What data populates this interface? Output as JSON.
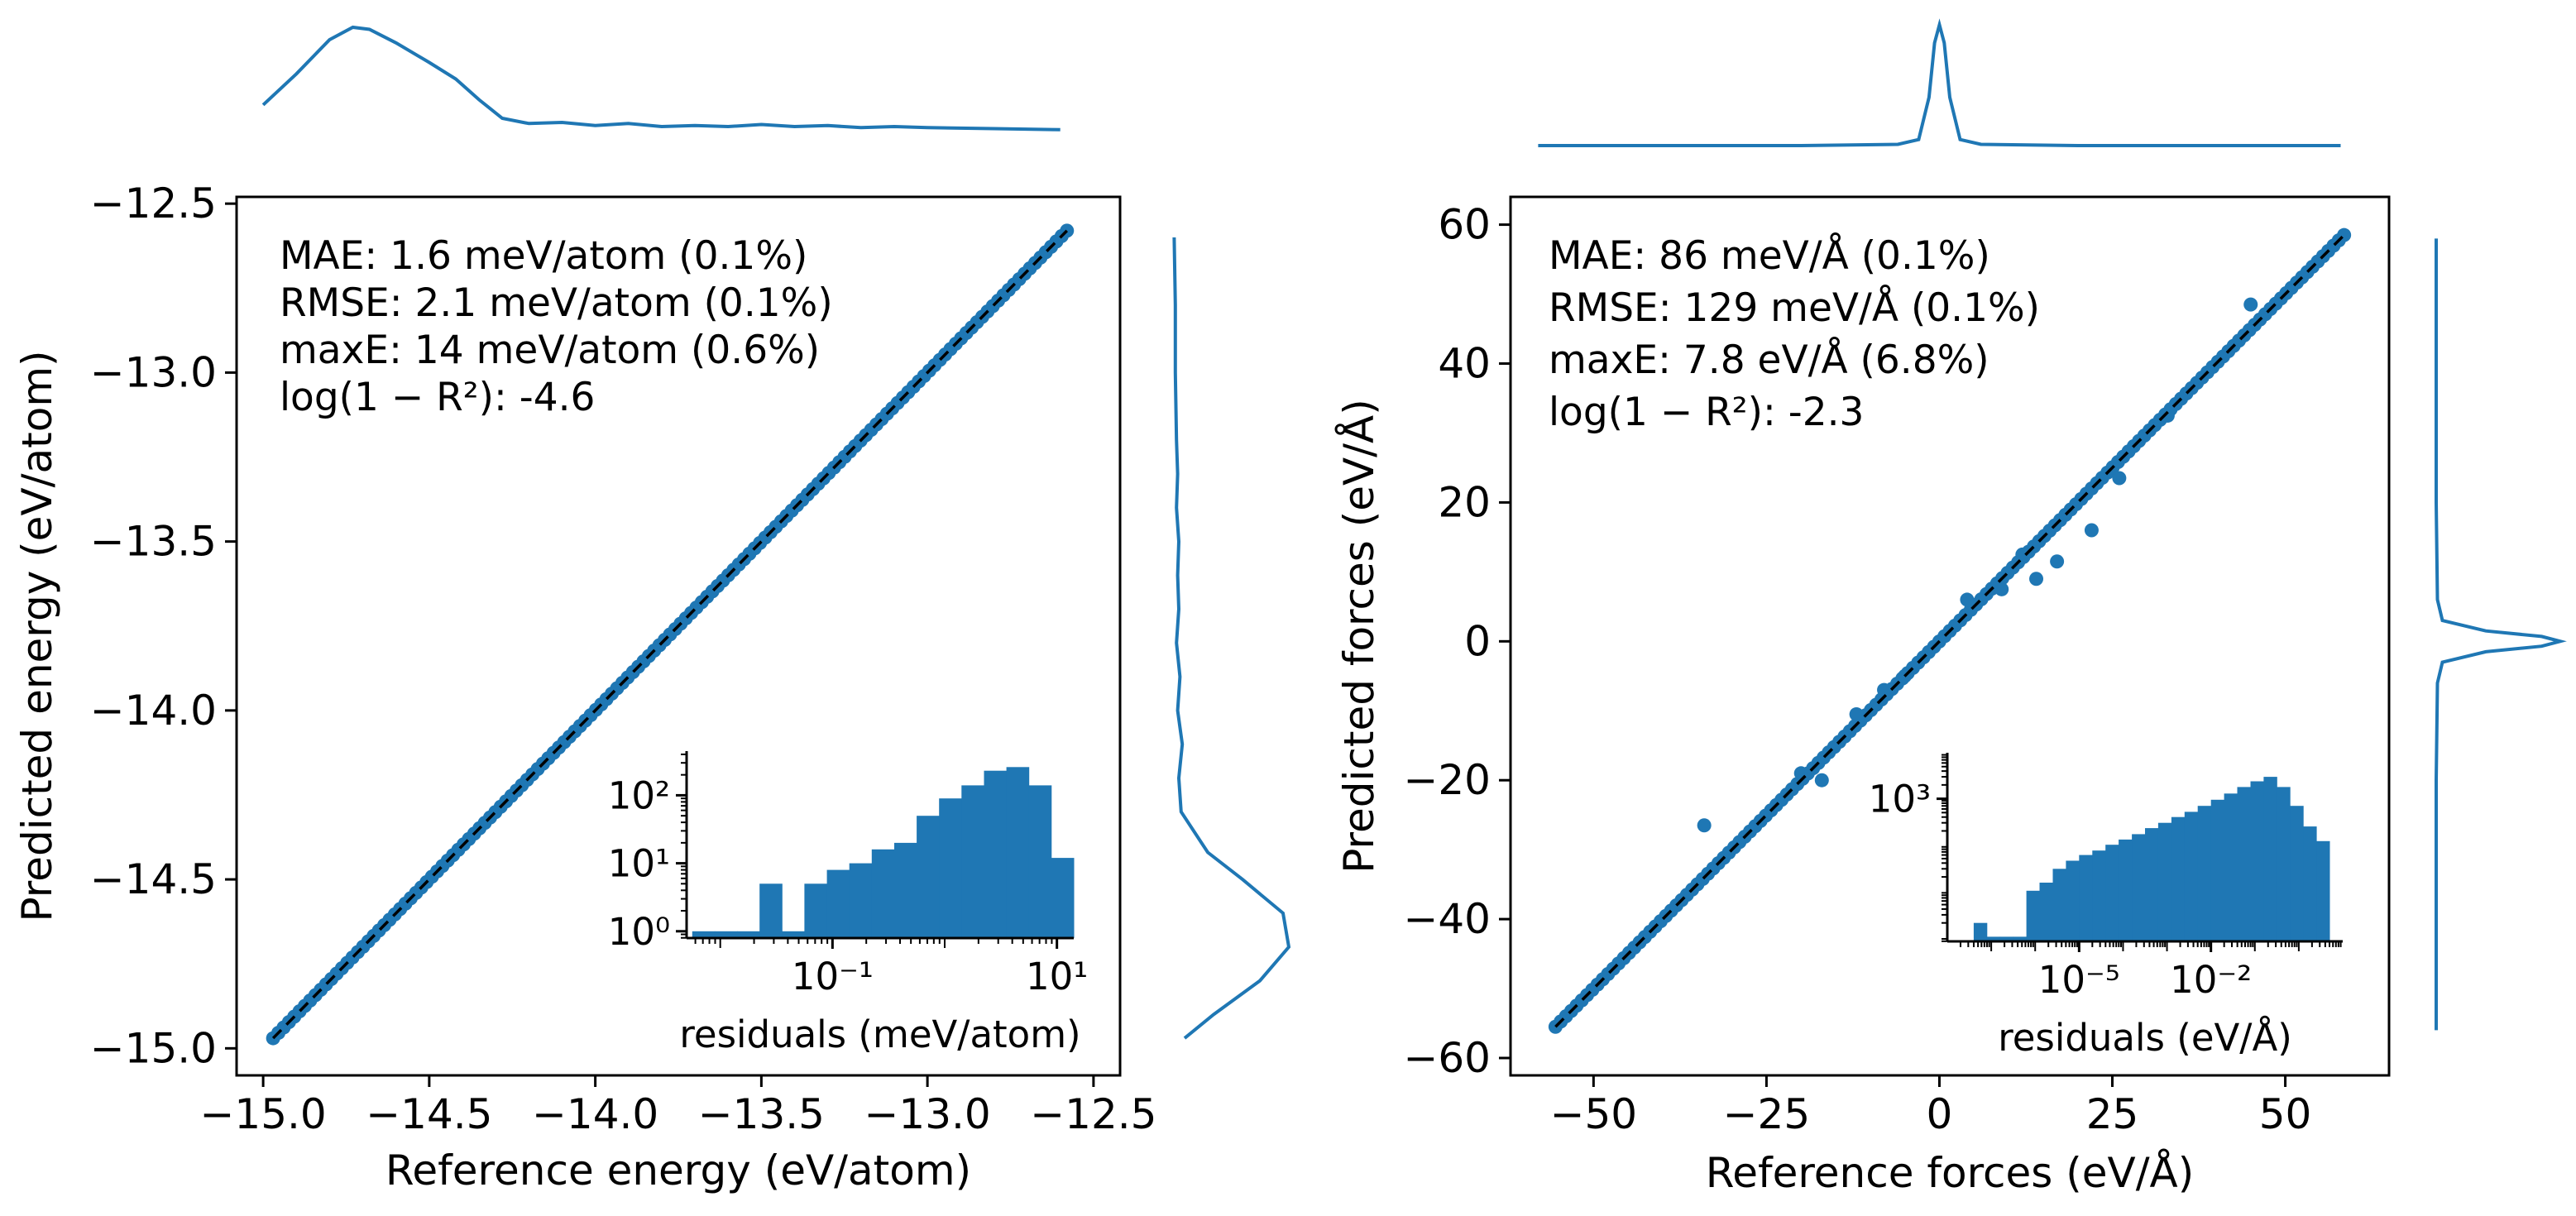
{
  "colors": {
    "accent": "#1f77b4",
    "ref_line": "#000000",
    "frame": "#000000"
  },
  "chart_data": [
    {
      "id": "energy",
      "type": "scatter",
      "xlabel": "Reference energy (eV/atom)",
      "ylabel": "Predicted energy (eV/atom)",
      "xlim": [
        -15.08,
        -12.42
      ],
      "ylim": [
        -15.08,
        -12.48
      ],
      "xticks": [
        -15.0,
        -14.5,
        -14.0,
        -13.5,
        -13.0,
        -12.5
      ],
      "xtick_labels": [
        "−15.0",
        "−14.5",
        "−14.0",
        "−13.5",
        "−13.0",
        "−12.5"
      ],
      "yticks": [
        -15.0,
        -14.5,
        -14.0,
        -13.5,
        -13.0,
        -12.5
      ],
      "ytick_labels": [
        "−15.0",
        "−14.5",
        "−14.0",
        "−13.5",
        "−13.0",
        "−12.5"
      ],
      "data_range": [
        -14.97,
        -12.58
      ],
      "reference_line": "y = x (dashed)",
      "stats": [
        "MAE: 1.6 meV/atom (0.1%)",
        "RMSE: 2.1 meV/atom (0.1%)",
        "maxE: 14 meV/atom (0.6%)",
        "log(1 − R²): -4.6"
      ],
      "top_kde": [
        [
          -15.0,
          0.25
        ],
        [
          -14.9,
          0.55
        ],
        [
          -14.8,
          0.88
        ],
        [
          -14.73,
          1.0
        ],
        [
          -14.68,
          0.98
        ],
        [
          -14.6,
          0.85
        ],
        [
          -14.5,
          0.66
        ],
        [
          -14.42,
          0.5
        ],
        [
          -14.35,
          0.3
        ],
        [
          -14.28,
          0.12
        ],
        [
          -14.2,
          0.07
        ],
        [
          -14.1,
          0.08
        ],
        [
          -14.0,
          0.05
        ],
        [
          -13.9,
          0.07
        ],
        [
          -13.8,
          0.04
        ],
        [
          -13.7,
          0.05
        ],
        [
          -13.6,
          0.04
        ],
        [
          -13.5,
          0.06
        ],
        [
          -13.4,
          0.04
        ],
        [
          -13.3,
          0.05
        ],
        [
          -13.2,
          0.03
        ],
        [
          -13.1,
          0.04
        ],
        [
          -13.0,
          0.03
        ],
        [
          -12.8,
          0.02
        ],
        [
          -12.6,
          0.01
        ]
      ],
      "right_kde": [
        [
          -14.97,
          0.1
        ],
        [
          -14.9,
          0.35
        ],
        [
          -14.8,
          0.75
        ],
        [
          -14.7,
          1.0
        ],
        [
          -14.6,
          0.95
        ],
        [
          -14.5,
          0.6
        ],
        [
          -14.42,
          0.3
        ],
        [
          -14.3,
          0.07
        ],
        [
          -14.2,
          0.05
        ],
        [
          -14.1,
          0.08
        ],
        [
          -14.0,
          0.04
        ],
        [
          -13.9,
          0.06
        ],
        [
          -13.8,
          0.03
        ],
        [
          -13.7,
          0.05
        ],
        [
          -13.6,
          0.04
        ],
        [
          -13.5,
          0.05
        ],
        [
          -13.4,
          0.03
        ],
        [
          -13.3,
          0.04
        ],
        [
          -13.2,
          0.03
        ],
        [
          -13.0,
          0.02
        ],
        [
          -12.8,
          0.02
        ],
        [
          -12.6,
          0.01
        ]
      ],
      "inset": {
        "type": "histogram",
        "xlabel": "residuals (meV/atom)",
        "xscale": "log",
        "yscale": "log",
        "xlim_log10": [
          -2.3,
          1.15
        ],
        "ylim_log10": [
          -0.1,
          2.65
        ],
        "xtick_log10": [
          -1,
          1
        ],
        "xtick_labels": [
          "10⁻¹",
          "10¹"
        ],
        "ytick_log10": [
          0,
          1,
          2
        ],
        "ytick_labels": [
          "10⁰",
          "10¹",
          "10²"
        ],
        "bins_log10": [
          -2.25,
          -2.05,
          -1.85,
          -1.65,
          -1.45,
          -1.25,
          -1.05,
          -0.85,
          -0.65,
          -0.45,
          -0.25,
          -0.05,
          0.15,
          0.35,
          0.55,
          0.75,
          0.95,
          1.15
        ],
        "counts": [
          1,
          1,
          1,
          5,
          1,
          5,
          8,
          10,
          16,
          20,
          50,
          90,
          140,
          230,
          260,
          140,
          12
        ]
      }
    },
    {
      "id": "forces",
      "type": "scatter",
      "xlabel": "Reference forces (eV/Å)",
      "ylabel": "Predicted forces (eV/Å)",
      "xlim": [
        -62,
        65
      ],
      "ylim": [
        -62.5,
        64
      ],
      "xticks": [
        -50,
        -25,
        0,
        25,
        50
      ],
      "xtick_labels": [
        "−50",
        "−25",
        "0",
        "25",
        "50"
      ],
      "yticks": [
        -60,
        -40,
        -20,
        0,
        20,
        40,
        60
      ],
      "ytick_labels": [
        "−60",
        "−40",
        "−20",
        "0",
        "20",
        "40",
        "60"
      ],
      "data_range": [
        -55.5,
        58.5
      ],
      "reference_line": "y = x (dashed)",
      "stats": [
        "MAE: 86 meV/Å (0.1%)",
        "RMSE: 129 meV/Å (0.1%)",
        "maxE: 7.8 eV/Å (6.8%)",
        "log(1 − R²): -2.3"
      ],
      "outliers": [
        [
          -34,
          -26.5
        ],
        [
          -20,
          -19
        ],
        [
          -17,
          -20
        ],
        [
          -12,
          -10.5
        ],
        [
          -8,
          -7
        ],
        [
          -5,
          -5
        ],
        [
          4,
          6
        ],
        [
          9,
          7.5
        ],
        [
          12,
          12.5
        ],
        [
          14,
          9
        ],
        [
          17,
          11.5
        ],
        [
          22,
          16
        ],
        [
          26,
          23.5
        ],
        [
          33,
          32.5
        ],
        [
          45,
          48.5
        ]
      ],
      "top_kde": [
        [
          -58,
          0.0
        ],
        [
          -20,
          0.0
        ],
        [
          -6,
          0.01
        ],
        [
          -3,
          0.05
        ],
        [
          -1.5,
          0.4
        ],
        [
          -0.7,
          0.85
        ],
        [
          0,
          1.0
        ],
        [
          0.7,
          0.85
        ],
        [
          1.5,
          0.4
        ],
        [
          3,
          0.05
        ],
        [
          6,
          0.01
        ],
        [
          20,
          0.0
        ],
        [
          58,
          0.0
        ]
      ],
      "right_kde": [
        [
          -56,
          0.0
        ],
        [
          -20,
          0.0
        ],
        [
          -6,
          0.01
        ],
        [
          -3,
          0.05
        ],
        [
          -1.5,
          0.4
        ],
        [
          -0.7,
          0.85
        ],
        [
          0,
          1.0
        ],
        [
          0.7,
          0.85
        ],
        [
          1.5,
          0.4
        ],
        [
          3,
          0.05
        ],
        [
          6,
          0.01
        ],
        [
          20,
          0.0
        ],
        [
          58,
          0.0
        ]
      ],
      "inset": {
        "type": "histogram",
        "xlabel": "residuals (eV/Å)",
        "xscale": "log",
        "yscale": "log",
        "xlim_log10": [
          -8.0,
          1.0
        ],
        "ylim_log10": [
          -0.1,
          4.0
        ],
        "xtick_log10": [
          -5,
          -2
        ],
        "xtick_labels": [
          "10⁻⁵",
          "10⁻²"
        ],
        "ytick_log10": [
          3
        ],
        "ytick_labels": [
          "10³"
        ],
        "bins_log10": [
          -7.4,
          -7.1,
          -6.8,
          -6.5,
          -6.2,
          -5.9,
          -5.6,
          -5.3,
          -5.0,
          -4.7,
          -4.4,
          -4.1,
          -3.8,
          -3.5,
          -3.2,
          -2.9,
          -2.6,
          -2.3,
          -2.0,
          -1.7,
          -1.4,
          -1.1,
          -0.8,
          -0.5,
          -0.2,
          0.1,
          0.4,
          0.7
        ],
        "counts": [
          2,
          1,
          1,
          1,
          10,
          15,
          30,
          45,
          60,
          75,
          100,
          130,
          170,
          230,
          300,
          400,
          520,
          700,
          950,
          1300,
          1800,
          2400,
          3000,
          1800,
          700,
          250,
          120
        ]
      }
    }
  ]
}
